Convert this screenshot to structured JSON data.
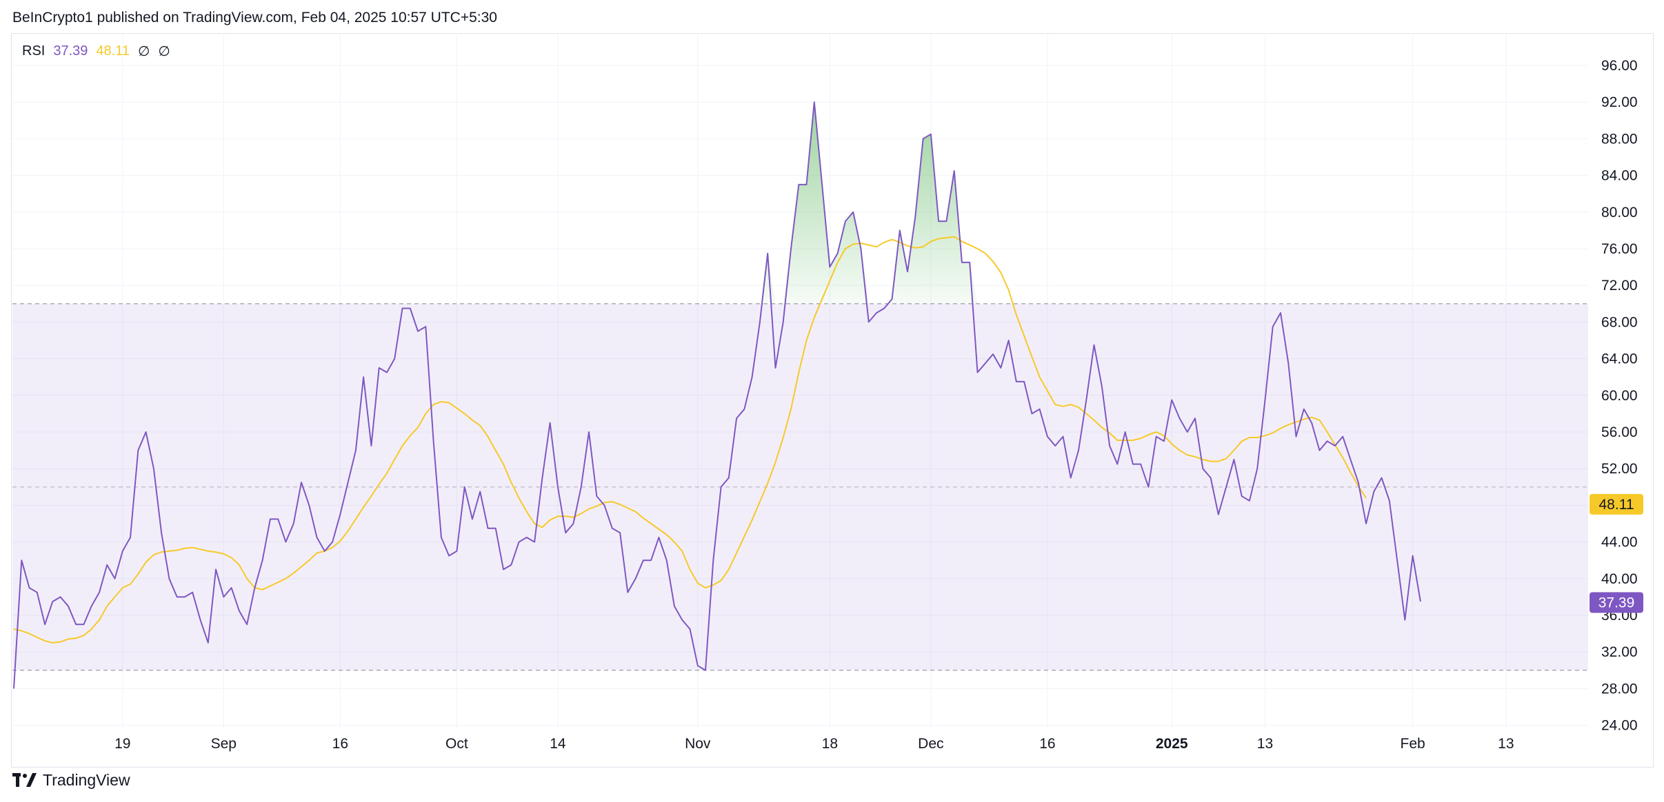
{
  "header": {
    "published": "BeInCrypto1 published on TradingView.com, Feb 04, 2025 10:57 UTC+5:30"
  },
  "legend": {
    "name": "RSI",
    "rsi_value": "37.39",
    "ma_value": "48.11",
    "icon1": "∅",
    "icon2": "∅"
  },
  "footer": {
    "brand": "TradingView",
    "logo": "17"
  },
  "colors": {
    "rsi": "#7e57c2",
    "ma": "#f7c928",
    "band": "#7e57c2",
    "overbought_fill": "#4caf50"
  },
  "chart_data": {
    "type": "line",
    "title": "",
    "ylim": [
      24,
      98
    ],
    "grid": true,
    "y_ticks": [
      "24.00",
      "28.00",
      "32.00",
      "36.00",
      "40.00",
      "44.00",
      "48.00",
      "52.00",
      "56.00",
      "60.00",
      "64.00",
      "68.00",
      "72.00",
      "76.00",
      "80.00",
      "84.00",
      "88.00",
      "92.00",
      "96.00"
    ],
    "x_ticks": [
      {
        "label": "19",
        "index": 14,
        "bold": false
      },
      {
        "label": "Sep",
        "index": 27,
        "bold": false
      },
      {
        "label": "16",
        "index": 42,
        "bold": false
      },
      {
        "label": "Oct",
        "index": 57,
        "bold": false
      },
      {
        "label": "14",
        "index": 70,
        "bold": false
      },
      {
        "label": "Nov",
        "index": 88,
        "bold": false
      },
      {
        "label": "18",
        "index": 105,
        "bold": false
      },
      {
        "label": "Dec",
        "index": 118,
        "bold": false
      },
      {
        "label": "16",
        "index": 133,
        "bold": false
      },
      {
        "label": "2025",
        "index": 149,
        "bold": true
      },
      {
        "label": "13",
        "index": 161,
        "bold": false
      },
      {
        "label": "Feb",
        "index": 180,
        "bold": false
      },
      {
        "label": "13",
        "index": 192,
        "bold": false
      }
    ],
    "bands": {
      "upper": 70,
      "middle": 50,
      "lower": 30
    },
    "series": [
      {
        "name": "RSI",
        "values": [
          28,
          42,
          39,
          38.5,
          35,
          37.5,
          38,
          37,
          35,
          35,
          37,
          38.5,
          41.5,
          40,
          43,
          44.5,
          54,
          56,
          52,
          45,
          40,
          38,
          38,
          38.5,
          35.5,
          33,
          41,
          38,
          39,
          36.5,
          35,
          39,
          42,
          46.5,
          46.5,
          44,
          46,
          50.5,
          48,
          44.5,
          43,
          44,
          47,
          50.5,
          54,
          62,
          54.5,
          63,
          62.5,
          64,
          69.5,
          69.5,
          67,
          67.5,
          55,
          44.5,
          42.5,
          43,
          50,
          46.5,
          49.5,
          45.5,
          45.5,
          41,
          41.5,
          44,
          44.5,
          44,
          51,
          57,
          50,
          45,
          46,
          50,
          56,
          49,
          48,
          45.5,
          45,
          38.5,
          40,
          42,
          42,
          44.5,
          42,
          37,
          35.5,
          34.5,
          30.5,
          30,
          42,
          50,
          51,
          57.5,
          58.5,
          62,
          68,
          75.5,
          63,
          68,
          76,
          83,
          83,
          92,
          83,
          74,
          75.5,
          79,
          80,
          76,
          68,
          69,
          69.5,
          70.5,
          78,
          73.5,
          79.5,
          88,
          88.5,
          79,
          79,
          84.5,
          74.5,
          74.5,
          62.5,
          63.5,
          64.5,
          63,
          66,
          61.5,
          61.5,
          58,
          58.5,
          55.5,
          54.5,
          55.5,
          51,
          54,
          59.5,
          65.5,
          61,
          54.5,
          52.5,
          56,
          52.5,
          52.5,
          50,
          55.5,
          55,
          59.5,
          57.5,
          56,
          57.5,
          52,
          51,
          47,
          50,
          53,
          49,
          48.5,
          52,
          59.5,
          67.5,
          69,
          63.5,
          55.5,
          58.5,
          57,
          54,
          55,
          54.5,
          55.5,
          53,
          50.5,
          46,
          49.5,
          51,
          48.5,
          42,
          35.5,
          42.5,
          37.5
        ]
      },
      {
        "name": "RSI-based MA",
        "values": [
          34.5,
          34.3,
          34,
          33.6,
          33.2,
          33,
          33.1,
          33.4,
          33.5,
          33.8,
          34.5,
          35.5,
          37,
          38,
          39,
          39.4,
          40.5,
          41.8,
          42.6,
          42.9,
          43,
          43.1,
          43.3,
          43.4,
          43.2,
          43,
          42.9,
          42.7,
          42.3,
          41.5,
          40,
          39,
          38.8,
          39.2,
          39.6,
          40,
          40.6,
          41.3,
          42,
          42.8,
          43,
          43.4,
          44.1,
          45.2,
          46.5,
          47.8,
          49,
          50.3,
          51.5,
          53,
          54.5,
          55.6,
          56.5,
          58,
          59,
          59.3,
          59.2,
          58.6,
          58,
          57.3,
          56.7,
          55.5,
          54,
          52.5,
          50.5,
          48.8,
          47.3,
          46,
          45.6,
          46.4,
          46.8,
          46.8,
          46.7,
          47.1,
          47.6,
          47.9,
          48.3,
          48.4,
          48.1,
          47.7,
          47.3,
          46.6,
          46,
          45.4,
          44.8,
          44,
          43,
          41,
          39.5,
          39,
          39.3,
          39.8,
          41,
          42.8,
          44.6,
          46.4,
          48.4,
          50.4,
          52.7,
          55.4,
          58.5,
          62.5,
          66,
          68.5,
          70.5,
          72.5,
          74.5,
          76,
          76.5,
          76.6,
          76.4,
          76.2,
          76.7,
          77,
          76.7,
          76.3,
          76.1,
          76.2,
          76.8,
          77.1,
          77.2,
          77.3,
          76.8,
          76.4,
          76,
          75.5,
          74.6,
          73.4,
          71.5,
          68.8,
          66.5,
          64.2,
          62,
          60.5,
          59,
          58.8,
          59,
          58.7,
          58,
          57.3,
          56.5,
          55.9,
          55.1,
          55.1,
          55.1,
          55.3,
          55.7,
          56,
          55.6,
          54.7,
          54,
          53.5,
          53.3,
          53,
          52.8,
          52.8,
          53.1,
          54,
          55,
          55.4,
          55.4,
          55.6,
          55.9,
          56.4,
          56.8,
          57.1,
          57.4,
          57.6,
          57.3,
          56,
          54.6,
          53.2,
          51.6,
          50.1,
          48.8
        ]
      }
    ]
  }
}
